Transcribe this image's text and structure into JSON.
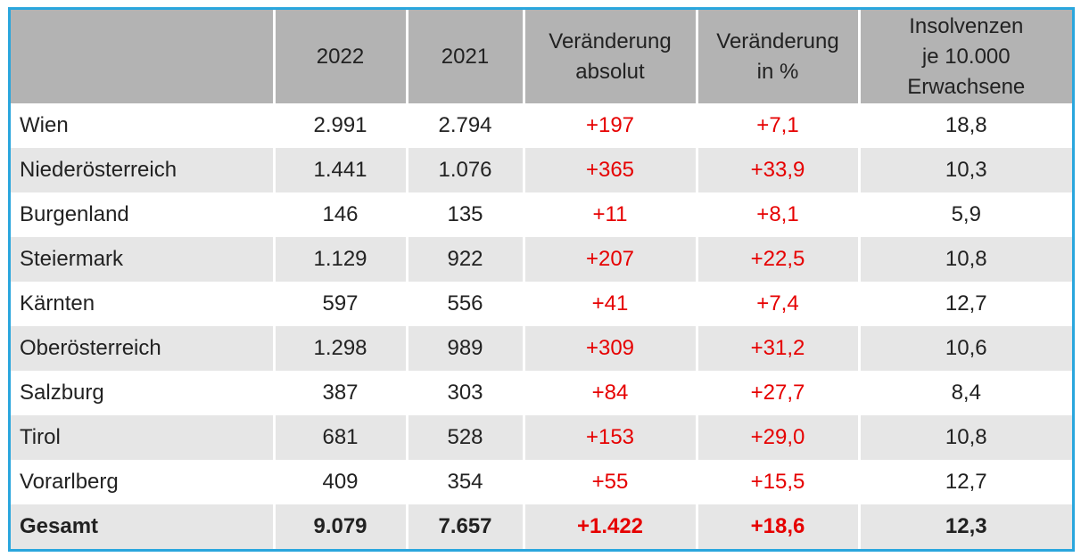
{
  "header": {
    "col0": "",
    "col1": "2022",
    "col2": "2021",
    "col3": [
      "Veränderung",
      "absolut"
    ],
    "col4": [
      "Veränderung",
      "in %"
    ],
    "col5": [
      "Insolvenzen",
      "je 10.000",
      "Erwachsene"
    ]
  },
  "rows": [
    {
      "region": "Wien",
      "y2022": "2.991",
      "y2021": "2.794",
      "abs": "+197",
      "pct": "+7,1",
      "per10k": "18,8"
    },
    {
      "region": "Niederösterreich",
      "y2022": "1.441",
      "y2021": "1.076",
      "abs": "+365",
      "pct": "+33,9",
      "per10k": "10,3"
    },
    {
      "region": "Burgenland",
      "y2022": "146",
      "y2021": "135",
      "abs": "+11",
      "pct": "+8,1",
      "per10k": "5,9"
    },
    {
      "region": "Steiermark",
      "y2022": "1.129",
      "y2021": "922",
      "abs": "+207",
      "pct": "+22,5",
      "per10k": "10,8"
    },
    {
      "region": "Kärnten",
      "y2022": "597",
      "y2021": "556",
      "abs": "+41",
      "pct": "+7,4",
      "per10k": "12,7"
    },
    {
      "region": "Oberösterreich",
      "y2022": "1.298",
      "y2021": "989",
      "abs": "+309",
      "pct": "+31,2",
      "per10k": "10,6"
    },
    {
      "region": "Salzburg",
      "y2022": "387",
      "y2021": "303",
      "abs": "+84",
      "pct": "+27,7",
      "per10k": "8,4"
    },
    {
      "region": "Tirol",
      "y2022": "681",
      "y2021": "528",
      "abs": "+153",
      "pct": "+29,0",
      "per10k": "10,8"
    },
    {
      "region": "Vorarlberg",
      "y2022": "409",
      "y2021": "354",
      "abs": "+55",
      "pct": "+15,5",
      "per10k": "12,7"
    }
  ],
  "total": {
    "region": "Gesamt",
    "y2022": "9.079",
    "y2021": "7.657",
    "abs": "+1.422",
    "pct": "+18,6",
    "per10k": "12,3"
  },
  "colors": {
    "border": "#2aa6dd",
    "header_bg": "#b3b3b3",
    "stripe": "#e6e6e6",
    "change": "#e60000"
  }
}
